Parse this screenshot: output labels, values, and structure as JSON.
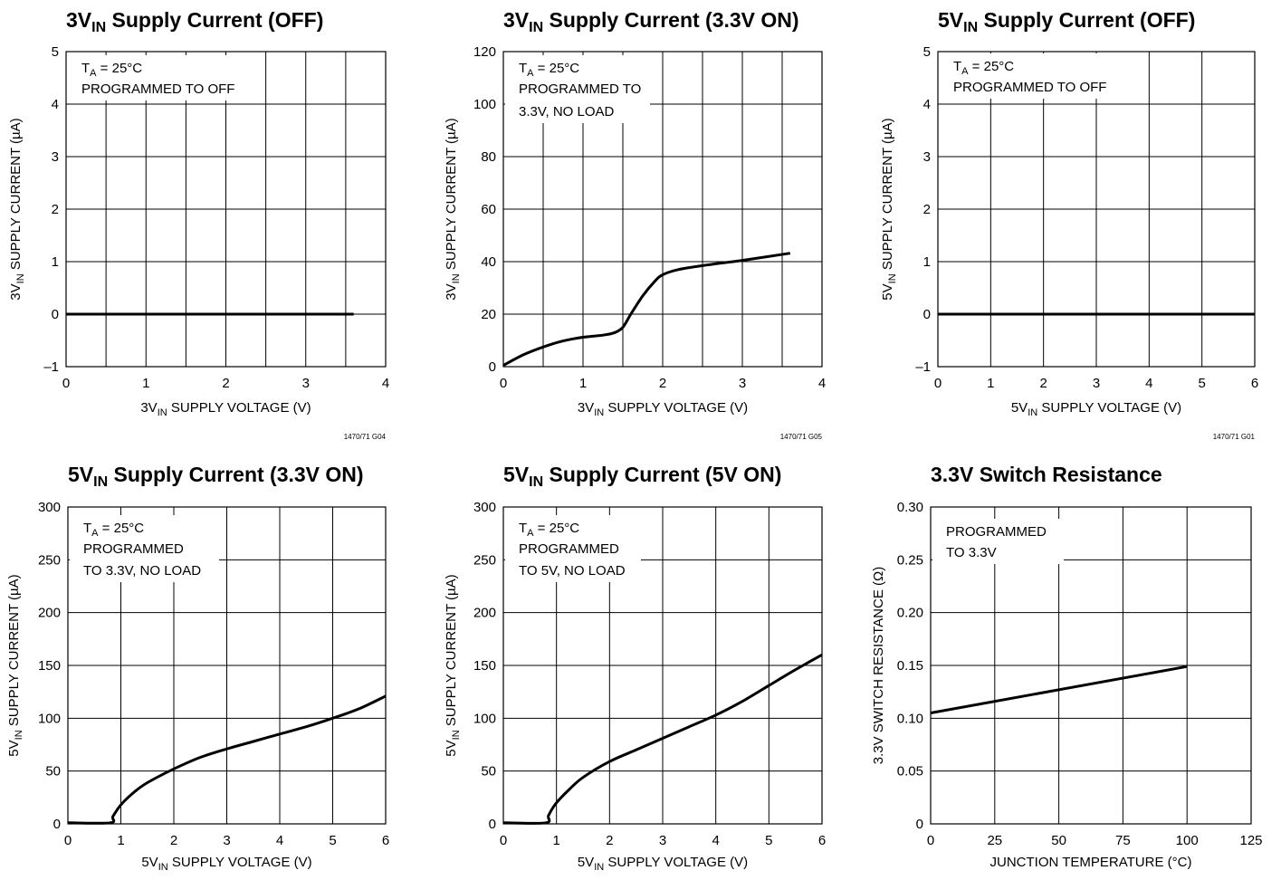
{
  "chart_data": [
    {
      "type": "line",
      "title": "3V",
      "title_sub": "IN",
      "title_rest": " Supply Current (OFF)",
      "xlabel": "3V",
      "xlabel_sub": "IN",
      "xlabel_rest": " SUPPLY VOLTAGE (V)",
      "ylabel": "3V",
      "ylabel_sub": "IN",
      "ylabel_rest": " SUPPLY CURRENT (µA)",
      "xlim": [
        0,
        4
      ],
      "ylim": [
        -1,
        5
      ],
      "xticks": [
        0,
        1,
        2,
        3,
        4
      ],
      "yticks": [
        -1,
        0,
        1,
        2,
        3,
        4,
        5
      ],
      "xtick_labels": [
        "0",
        "1",
        "2",
        "3",
        "4"
      ],
      "ytick_labels": [
        "–1",
        "0",
        "1",
        "2",
        "3",
        "4",
        "5"
      ],
      "grid": true,
      "x_minor_grid": true,
      "annotation": [
        "T",
        "A",
        " = 25°C",
        "PROGRAMMED TO OFF"
      ],
      "code": "1470/71 G04",
      "series": [
        {
          "x": [
            0,
            3.6
          ],
          "y": [
            0,
            0
          ]
        }
      ]
    },
    {
      "type": "line",
      "title": "3V",
      "title_sub": "IN",
      "title_rest": " Supply Current (3.3V ON)",
      "xlabel": "3V",
      "xlabel_sub": "IN",
      "xlabel_rest": " SUPPLY VOLTAGE (V)",
      "ylabel": "3V",
      "ylabel_sub": "IN",
      "ylabel_rest": " SUPPLY CURRENT (µA)",
      "xlim": [
        0,
        4
      ],
      "ylim": [
        0,
        120
      ],
      "xticks": [
        0,
        1,
        2,
        3,
        4
      ],
      "yticks": [
        0,
        20,
        40,
        60,
        80,
        100,
        120
      ],
      "xtick_labels": [
        "0",
        "1",
        "2",
        "3",
        "4"
      ],
      "ytick_labels": [
        "0",
        "20",
        "40",
        "60",
        "80",
        "100",
        "120"
      ],
      "grid": true,
      "x_minor_grid": true,
      "annotation": [
        "T",
        "A",
        " = 25°C",
        "PROGRAMMED TO",
        "3.3V, NO LOAD"
      ],
      "code": "1470/71 G05",
      "series": [
        {
          "x": [
            0,
            0.25,
            0.5,
            0.75,
            1.0,
            1.25,
            1.4,
            1.5,
            1.6,
            1.75,
            1.9,
            2.0,
            2.2,
            2.5,
            3.0,
            3.6
          ],
          "y": [
            0.5,
            4.5,
            7.5,
            9.8,
            11.2,
            12,
            13,
            15,
            20,
            27,
            32.5,
            35,
            37,
            38.5,
            40.5,
            43.2
          ]
        }
      ]
    },
    {
      "type": "line",
      "title": "5V",
      "title_sub": "IN",
      "title_rest": " Supply Current (OFF)",
      "xlabel": "5V",
      "xlabel_sub": "IN",
      "xlabel_rest": " SUPPLY VOLTAGE (V)",
      "ylabel": "5V",
      "ylabel_sub": "IN",
      "ylabel_rest": " SUPPLY CURRENT (µA)",
      "xlim": [
        0,
        6
      ],
      "ylim": [
        -1,
        5
      ],
      "xticks": [
        0,
        1,
        2,
        3,
        4,
        5,
        6
      ],
      "yticks": [
        -1,
        0,
        1,
        2,
        3,
        4,
        5
      ],
      "xtick_labels": [
        "0",
        "1",
        "2",
        "3",
        "4",
        "5",
        "6"
      ],
      "ytick_labels": [
        "–1",
        "0",
        "1",
        "2",
        "3",
        "4",
        "5"
      ],
      "grid": true,
      "x_minor_grid": false,
      "annotation": [
        "T",
        "A",
        " = 25°C",
        "PROGRAMMED TO OFF"
      ],
      "code": "1470/71 G01",
      "series": [
        {
          "x": [
            0,
            6
          ],
          "y": [
            0,
            0
          ]
        }
      ]
    },
    {
      "type": "line",
      "title": "5V",
      "title_sub": "IN",
      "title_rest": " Supply Current (3.3V ON)",
      "xlabel": "5V",
      "xlabel_sub": "IN",
      "xlabel_rest": " SUPPLY VOLTAGE (V)",
      "ylabel": "5V",
      "ylabel_sub": "IN",
      "ylabel_rest": " SUPPLY CURRENT (µA)",
      "xlim": [
        0,
        6
      ],
      "ylim": [
        0,
        300
      ],
      "xticks": [
        0,
        1,
        2,
        3,
        4,
        5,
        6
      ],
      "yticks": [
        0,
        50,
        100,
        150,
        200,
        250,
        300
      ],
      "xtick_labels": [
        "0",
        "1",
        "2",
        "3",
        "4",
        "5",
        "6"
      ],
      "ytick_labels": [
        "0",
        "50",
        "100",
        "150",
        "200",
        "250",
        "300"
      ],
      "grid": true,
      "x_minor_grid": false,
      "annotation": [
        "T",
        "A",
        " = 25°C",
        "PROGRAMMED",
        "TO 3.3V, NO LOAD"
      ],
      "code": "",
      "series": [
        {
          "x": [
            0,
            0.8,
            0.85,
            1.0,
            1.25,
            1.5,
            2.0,
            2.5,
            3.0,
            3.5,
            4.0,
            4.5,
            5.0,
            5.5,
            6.0
          ],
          "y": [
            1,
            1,
            7,
            18,
            30,
            39,
            52,
            63,
            71,
            78,
            85,
            92,
            100,
            109,
            121
          ]
        }
      ]
    },
    {
      "type": "line",
      "title": "5V",
      "title_sub": "IN",
      "title_rest": " Supply Current (5V ON)",
      "xlabel": "5V",
      "xlabel_sub": "IN",
      "xlabel_rest": " SUPPLY VOLTAGE (V)",
      "ylabel": "5V",
      "ylabel_sub": "IN",
      "ylabel_rest": " SUPPLY CURRENT (µA)",
      "xlim": [
        0,
        6
      ],
      "ylim": [
        0,
        300
      ],
      "xticks": [
        0,
        1,
        2,
        3,
        4,
        5,
        6
      ],
      "yticks": [
        0,
        50,
        100,
        150,
        200,
        250,
        300
      ],
      "xtick_labels": [
        "0",
        "1",
        "2",
        "3",
        "4",
        "5",
        "6"
      ],
      "ytick_labels": [
        "0",
        "50",
        "100",
        "150",
        "200",
        "250",
        "300"
      ],
      "grid": true,
      "x_minor_grid": false,
      "annotation": [
        "T",
        "A",
        " = 25°C",
        "PROGRAMMED",
        "TO 5V, NO LOAD"
      ],
      "code": "",
      "series": [
        {
          "x": [
            0,
            0.8,
            0.85,
            1.0,
            1.25,
            1.5,
            2.0,
            2.5,
            3.0,
            3.5,
            4.0,
            4.5,
            5.0,
            5.5,
            6.0
          ],
          "y": [
            1,
            1,
            8,
            20,
            33,
            44,
            59,
            70,
            81,
            92,
            103,
            116,
            131,
            146,
            160
          ]
        }
      ]
    },
    {
      "type": "line",
      "title": "3.3V Switch Resistance",
      "title_sub": "",
      "title_rest": "",
      "xlabel": "JUNCTION TEMPERATURE (°C)",
      "xlabel_sub": "",
      "xlabel_rest": "",
      "ylabel": "3.3V SWITCH RESISTANCE (Ω)",
      "ylabel_sub": "",
      "ylabel_rest": "",
      "xlim": [
        0,
        125
      ],
      "ylim": [
        0,
        0.3
      ],
      "xticks": [
        0,
        25,
        50,
        75,
        100,
        125
      ],
      "yticks": [
        0,
        0.05,
        0.1,
        0.15,
        0.2,
        0.25,
        0.3
      ],
      "xtick_labels": [
        "0",
        "25",
        "50",
        "75",
        "100",
        "125"
      ],
      "ytick_labels": [
        "0",
        "0.05",
        "0.10",
        "0.15",
        "0.20",
        "0.25",
        "0.30"
      ],
      "grid": true,
      "x_minor_grid": false,
      "annotation": [
        "",
        "",
        "",
        "PROGRAMMED",
        "TO 3.3V"
      ],
      "code": "",
      "series": [
        {
          "x": [
            0,
            100
          ],
          "y": [
            0.105,
            0.149
          ]
        }
      ]
    }
  ]
}
